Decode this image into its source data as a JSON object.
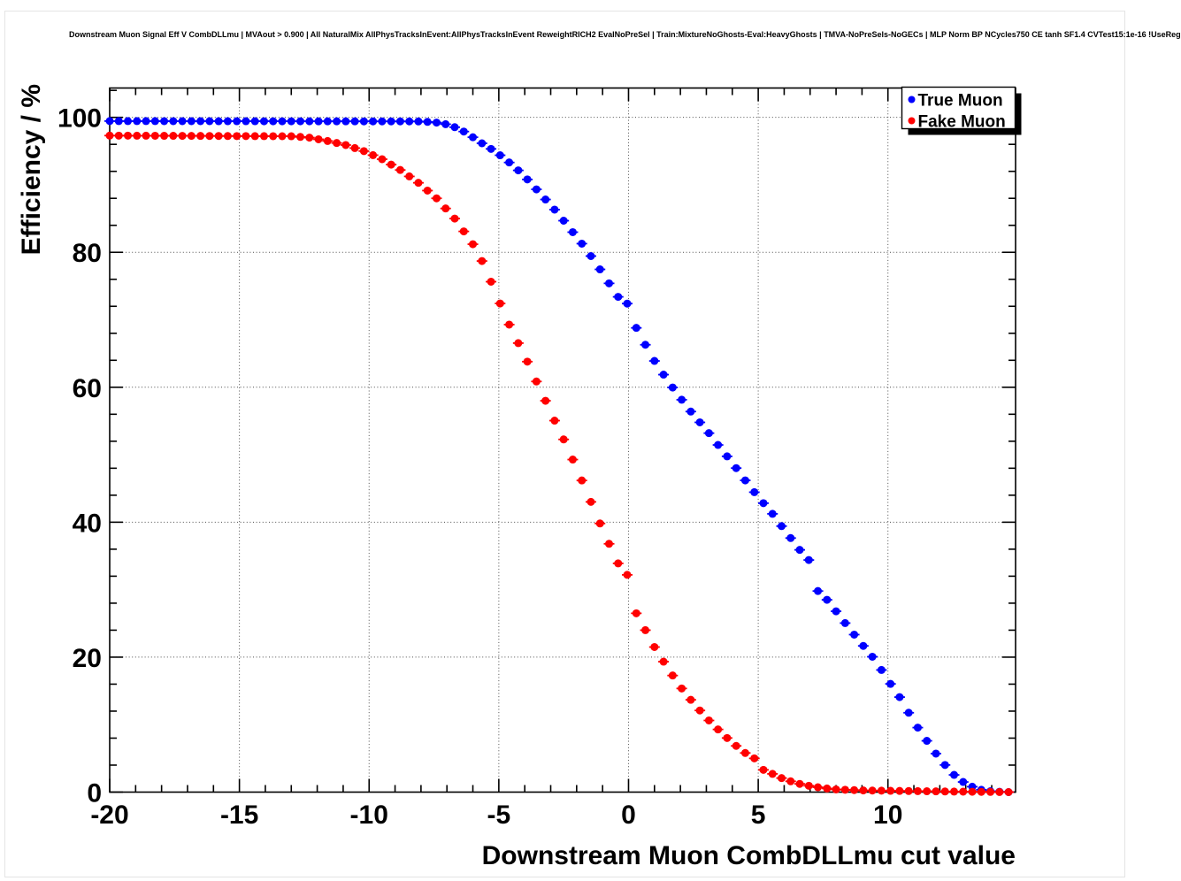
{
  "header": {
    "title": "Downstream Muon Signal Eff V CombDLLmu | MVAout > 0.900 | All NaturalMix AllPhysTracksInEvent:AllPhysTracksInEvent ReweightRICH2 EvalNoPreSel | Train:MixtureNoGhosts-Eval:HeavyGhosts | TMVA-NoPreSels-NoGECs | MLP Norm BP NCycles750 CE tanh SF1.4 CVTest15:1e-16 !UseReg"
  },
  "colors": {
    "true_muon": "#0000ff",
    "fake_muon": "#ff0000",
    "frame": "#000000",
    "grid": "#4d4d4d",
    "background": "#ffffff",
    "legend_shadow": "#000000"
  },
  "chart_data": {
    "type": "scatter",
    "title": "Downstream Muon Signal Eff V CombDLLmu | MVAout > 0.900 | All NaturalMix AllPhysTracksInEvent:AllPhysTracksInEvent ReweightRICH2 EvalNoPreSel | Train:MixtureNoGhosts-Eval:HeavyGhosts | TMVA-NoPreSels-NoGECs | MLP Norm BP NCycles750 CE tanh SF1.4 CVTest15:1e-16 !UseReg",
    "xlabel": "Downstream Muon CombDLLmu cut value",
    "ylabel": "Efficiency / %",
    "xlim": [
      -20,
      14.92
    ],
    "ylim": [
      0,
      104.35
    ],
    "grid": true,
    "x_major_ticks": [
      {
        "v": -20,
        "label": "-20"
      },
      {
        "v": -15,
        "label": "-15"
      },
      {
        "v": -10,
        "label": "-10"
      },
      {
        "v": -5,
        "label": "-5"
      },
      {
        "v": 0,
        "label": "0"
      },
      {
        "v": 5,
        "label": "5"
      },
      {
        "v": 10,
        "label": "10"
      }
    ],
    "x_minor_step": 1,
    "y_major_ticks": [
      {
        "v": 0,
        "label": "0"
      },
      {
        "v": 20,
        "label": "20"
      },
      {
        "v": 40,
        "label": "40"
      },
      {
        "v": 60,
        "label": "60"
      },
      {
        "v": 80,
        "label": "80"
      },
      {
        "v": 100,
        "label": "100"
      }
    ],
    "y_minor_step": 4,
    "legend": {
      "position": "top-right",
      "entries": [
        {
          "label": "True Muon",
          "color": "#0000ff"
        },
        {
          "label": "Fake Muon",
          "color": "#ff0000"
        }
      ]
    },
    "sampling": {
      "x_start": -20,
      "x_step": 0.35,
      "n_points": 100
    },
    "series": [
      {
        "name": "True Muon",
        "color": "#0000ff",
        "anchor_points": [
          [
            -20,
            99.45
          ],
          [
            -8,
            99.4
          ],
          [
            -7.3,
            99.2
          ],
          [
            -6.95,
            98.9
          ],
          [
            -6.6,
            98.4
          ],
          [
            -6.25,
            97.7
          ],
          [
            -5.9,
            96.8
          ],
          [
            -5.55,
            95.9
          ],
          [
            -5.2,
            95.1
          ],
          [
            -4.85,
            94.1
          ],
          [
            -4.5,
            93.0
          ],
          [
            -4.15,
            91.8
          ],
          [
            -3.8,
            90.4
          ],
          [
            -3.45,
            88.9
          ],
          [
            -3.1,
            87.4
          ],
          [
            -2.75,
            85.9
          ],
          [
            -2.4,
            84.2
          ],
          [
            -2.05,
            82.5
          ],
          [
            -1.7,
            80.8
          ],
          [
            -1.35,
            78.9
          ],
          [
            -1.0,
            76.9
          ],
          [
            -0.75,
            75.4
          ],
          [
            -0.4,
            73.4
          ],
          [
            -0.05,
            72.4
          ],
          [
            0.3,
            68.8
          ],
          [
            0.65,
            66.3
          ],
          [
            1.0,
            63.9
          ],
          [
            1.5,
            61.0
          ],
          [
            2.0,
            58.4
          ],
          [
            2.5,
            55.9
          ],
          [
            3.0,
            53.7
          ],
          [
            3.5,
            51.2
          ],
          [
            4.0,
            48.8
          ],
          [
            4.5,
            46.2
          ],
          [
            5.0,
            43.7
          ],
          [
            5.5,
            41.5
          ],
          [
            6.0,
            38.9
          ],
          [
            6.6,
            35.9
          ],
          [
            6.95,
            34.4
          ],
          [
            7.3,
            29.8
          ],
          [
            7.65,
            28.5
          ],
          [
            8.0,
            26.8
          ],
          [
            8.5,
            24.3
          ],
          [
            9.0,
            21.9
          ],
          [
            9.5,
            19.6
          ],
          [
            10.0,
            16.6
          ],
          [
            10.5,
            13.8
          ],
          [
            11.0,
            10.4
          ],
          [
            11.5,
            7.6
          ],
          [
            12.0,
            4.9
          ],
          [
            12.5,
            2.7
          ],
          [
            13.0,
            1.2
          ],
          [
            13.5,
            0.4
          ],
          [
            14.0,
            0.1
          ],
          [
            14.65,
            0.0
          ]
        ]
      },
      {
        "name": "Fake Muon",
        "color": "#ff0000",
        "anchor_points": [
          [
            -20,
            97.3
          ],
          [
            -13,
            97.2
          ],
          [
            -12.3,
            97.0
          ],
          [
            -11.6,
            96.5
          ],
          [
            -10.9,
            95.9
          ],
          [
            -10.2,
            95.0
          ],
          [
            -9.5,
            93.8
          ],
          [
            -8.8,
            92.2
          ],
          [
            -8.1,
            90.3
          ],
          [
            -7.4,
            88.0
          ],
          [
            -6.7,
            85.0
          ],
          [
            -6.0,
            81.2
          ],
          [
            -5.55,
            78.0
          ],
          [
            -5.2,
            74.7
          ],
          [
            -4.85,
            71.5
          ],
          [
            -4.5,
            68.4
          ],
          [
            -4.15,
            65.8
          ],
          [
            -3.8,
            63.0
          ],
          [
            -3.45,
            60.0
          ],
          [
            -3.1,
            57.2
          ],
          [
            -2.75,
            54.2
          ],
          [
            -2.4,
            51.5
          ],
          [
            -2.05,
            48.4
          ],
          [
            -1.7,
            45.3
          ],
          [
            -1.35,
            42.1
          ],
          [
            -1.0,
            38.9
          ],
          [
            -0.75,
            36.8
          ],
          [
            -0.4,
            33.9
          ],
          [
            -0.05,
            32.2
          ],
          [
            0.3,
            26.5
          ],
          [
            0.65,
            24.0
          ],
          [
            1.0,
            21.5
          ],
          [
            1.5,
            18.4
          ],
          [
            2.0,
            15.6
          ],
          [
            2.5,
            13.2
          ],
          [
            3.0,
            11.0
          ],
          [
            3.5,
            9.1
          ],
          [
            4.0,
            7.3
          ],
          [
            4.5,
            5.8
          ],
          [
            4.85,
            5.0
          ],
          [
            5.2,
            3.3
          ],
          [
            5.55,
            2.7
          ],
          [
            6.0,
            1.9
          ],
          [
            6.5,
            1.3
          ],
          [
            7.0,
            0.9
          ],
          [
            7.5,
            0.6
          ],
          [
            8.0,
            0.4
          ],
          [
            9.0,
            0.25
          ],
          [
            10.0,
            0.2
          ],
          [
            12.0,
            0.1
          ],
          [
            14.65,
            0.0
          ]
        ]
      }
    ]
  }
}
